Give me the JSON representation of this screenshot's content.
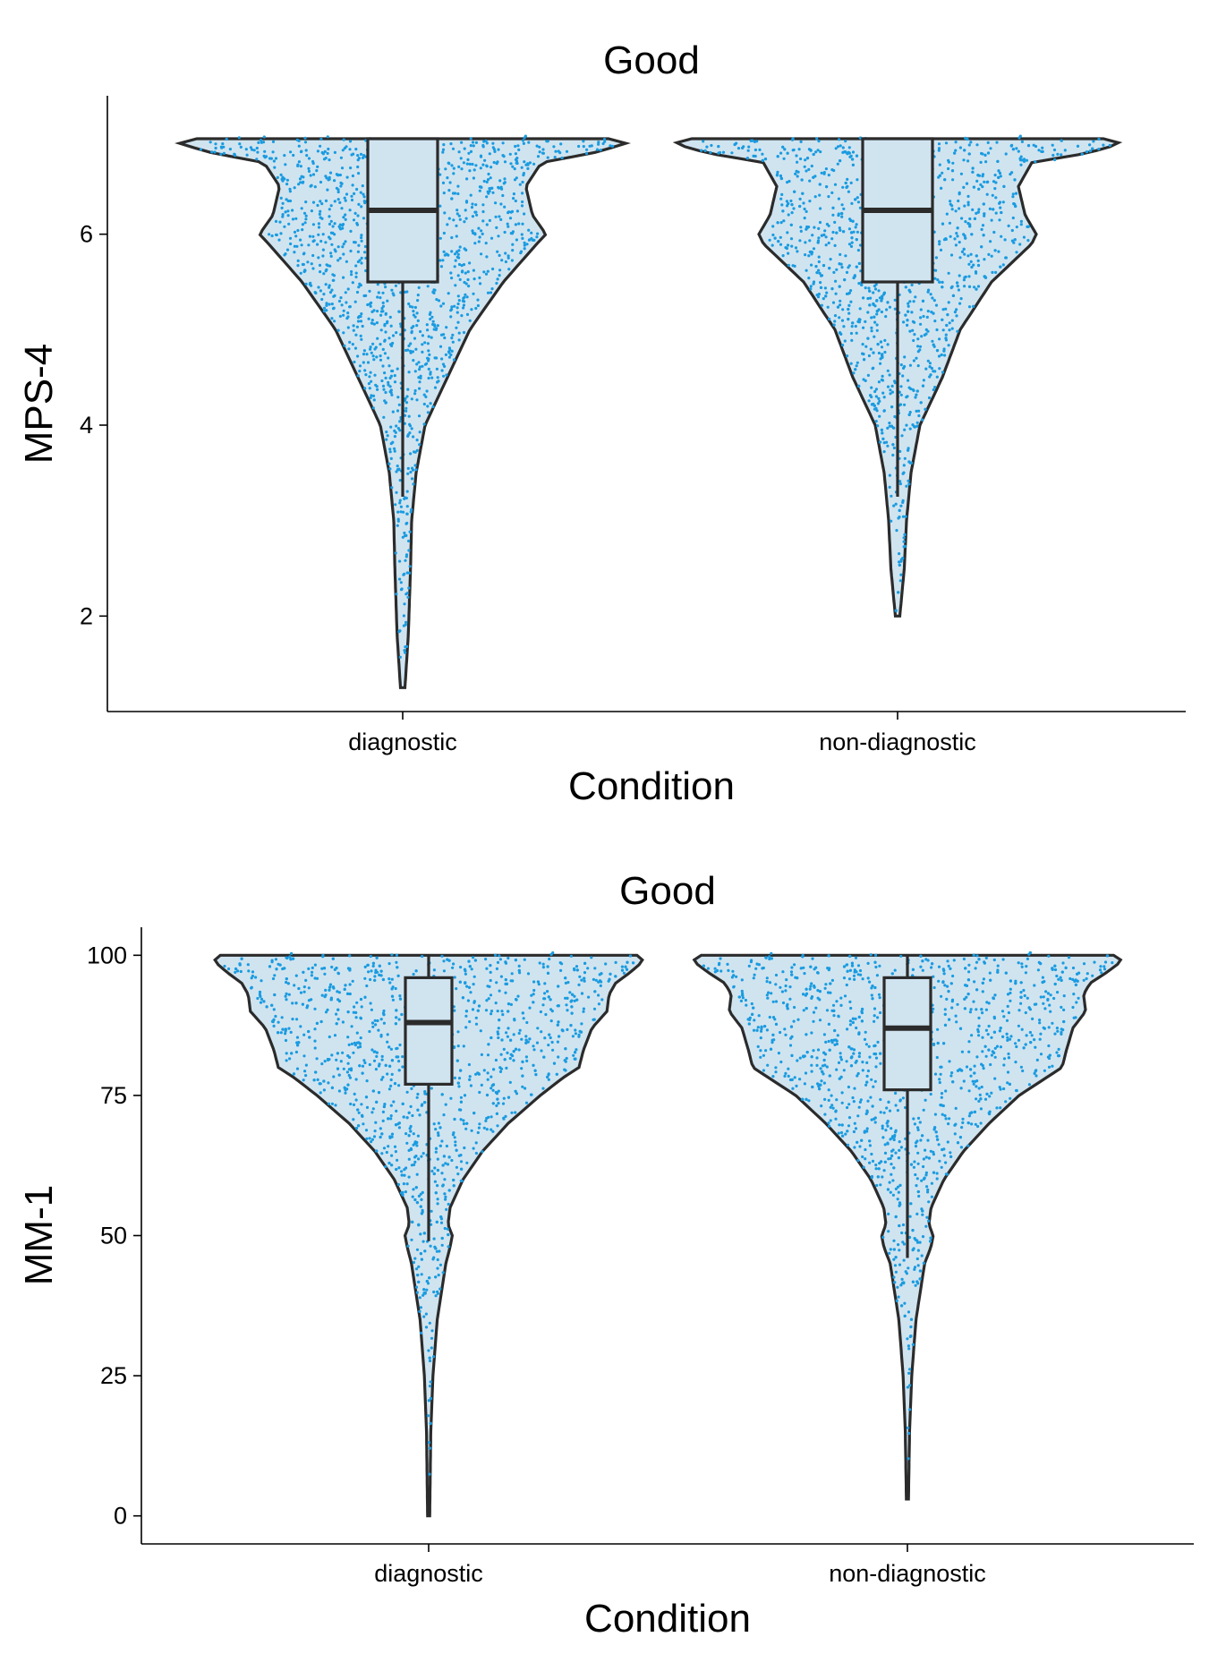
{
  "chart_data": [
    {
      "type": "violin",
      "title": "Good",
      "xlabel": "Condition",
      "ylabel": "MPS-4",
      "categories": [
        "diagnostic",
        "non-diagnostic"
      ],
      "ylim": [
        1.0,
        7.45
      ],
      "yticks": [
        2,
        4,
        6
      ],
      "colors": {
        "fill": "#d0e4f0",
        "outline": "#2b2b2b",
        "points": "#1a9be0"
      },
      "groups": [
        {
          "name": "diagnostic",
          "box": {
            "lower_whisker": 3.25,
            "q1": 5.5,
            "median": 6.25,
            "q3": 7.0,
            "upper_whisker": 7.0
          },
          "density": [
            [
              1.25,
              0.01
            ],
            [
              1.8,
              0.025
            ],
            [
              2.5,
              0.035
            ],
            [
              3.0,
              0.04
            ],
            [
              3.5,
              0.06
            ],
            [
              4.0,
              0.1
            ],
            [
              4.5,
              0.2
            ],
            [
              5.0,
              0.3
            ],
            [
              5.5,
              0.45
            ],
            [
              5.9,
              0.6
            ],
            [
              6.0,
              0.64
            ],
            [
              6.2,
              0.58
            ],
            [
              6.5,
              0.55
            ],
            [
              6.75,
              0.62
            ],
            [
              6.85,
              0.85
            ],
            [
              6.95,
              1.0
            ],
            [
              7.0,
              0.92
            ]
          ]
        },
        {
          "name": "non-diagnostic",
          "box": {
            "lower_whisker": 3.25,
            "q1": 5.5,
            "median": 6.25,
            "q3": 7.0,
            "upper_whisker": 7.0
          },
          "density": [
            [
              2.0,
              0.01
            ],
            [
              2.5,
              0.03
            ],
            [
              3.0,
              0.04
            ],
            [
              3.5,
              0.06
            ],
            [
              4.0,
              0.1
            ],
            [
              4.5,
              0.2
            ],
            [
              5.0,
              0.28
            ],
            [
              5.5,
              0.42
            ],
            [
              5.9,
              0.6
            ],
            [
              6.0,
              0.62
            ],
            [
              6.2,
              0.57
            ],
            [
              6.5,
              0.54
            ],
            [
              6.75,
              0.6
            ],
            [
              6.85,
              0.85
            ],
            [
              6.95,
              1.0
            ],
            [
              7.0,
              0.92
            ]
          ]
        }
      ]
    },
    {
      "type": "violin",
      "title": "Good",
      "xlabel": "Condition",
      "ylabel": "MM-1",
      "categories": [
        "diagnostic",
        "non-diagnostic"
      ],
      "ylim": [
        -5,
        105
      ],
      "yticks": [
        0,
        25,
        50,
        75,
        100
      ],
      "colors": {
        "fill": "#d0e4f0",
        "outline": "#2b2b2b",
        "points": "#1a9be0"
      },
      "groups": [
        {
          "name": "diagnostic",
          "box": {
            "lower_whisker": 49,
            "q1": 77,
            "median": 88,
            "q3": 96,
            "upper_whisker": 100
          },
          "density": [
            [
              0,
              0.005
            ],
            [
              15,
              0.01
            ],
            [
              25,
              0.02
            ],
            [
              35,
              0.04
            ],
            [
              45,
              0.08
            ],
            [
              48,
              0.1
            ],
            [
              50,
              0.11
            ],
            [
              52,
              0.09
            ],
            [
              55,
              0.1
            ],
            [
              60,
              0.16
            ],
            [
              65,
              0.25
            ],
            [
              70,
              0.37
            ],
            [
              75,
              0.52
            ],
            [
              78,
              0.62
            ],
            [
              80,
              0.7
            ],
            [
              83,
              0.72
            ],
            [
              87,
              0.76
            ],
            [
              90,
              0.83
            ],
            [
              93,
              0.84
            ],
            [
              95,
              0.87
            ],
            [
              97,
              0.94
            ],
            [
              99,
              1.0
            ],
            [
              100,
              0.97
            ]
          ]
        },
        {
          "name": "non-diagnostic",
          "box": {
            "lower_whisker": 46,
            "q1": 76,
            "median": 87,
            "q3": 96,
            "upper_whisker": 100
          },
          "density": [
            [
              3,
              0.005
            ],
            [
              15,
              0.01
            ],
            [
              25,
              0.02
            ],
            [
              35,
              0.04
            ],
            [
              45,
              0.08
            ],
            [
              48,
              0.11
            ],
            [
              50,
              0.12
            ],
            [
              52,
              0.1
            ],
            [
              55,
              0.11
            ],
            [
              60,
              0.17
            ],
            [
              65,
              0.26
            ],
            [
              70,
              0.38
            ],
            [
              75,
              0.52
            ],
            [
              78,
              0.64
            ],
            [
              80,
              0.72
            ],
            [
              83,
              0.74
            ],
            [
              87,
              0.77
            ],
            [
              90,
              0.83
            ],
            [
              93,
              0.82
            ],
            [
              95,
              0.85
            ],
            [
              97,
              0.93
            ],
            [
              99,
              1.0
            ],
            [
              100,
              0.96
            ]
          ]
        }
      ]
    }
  ]
}
